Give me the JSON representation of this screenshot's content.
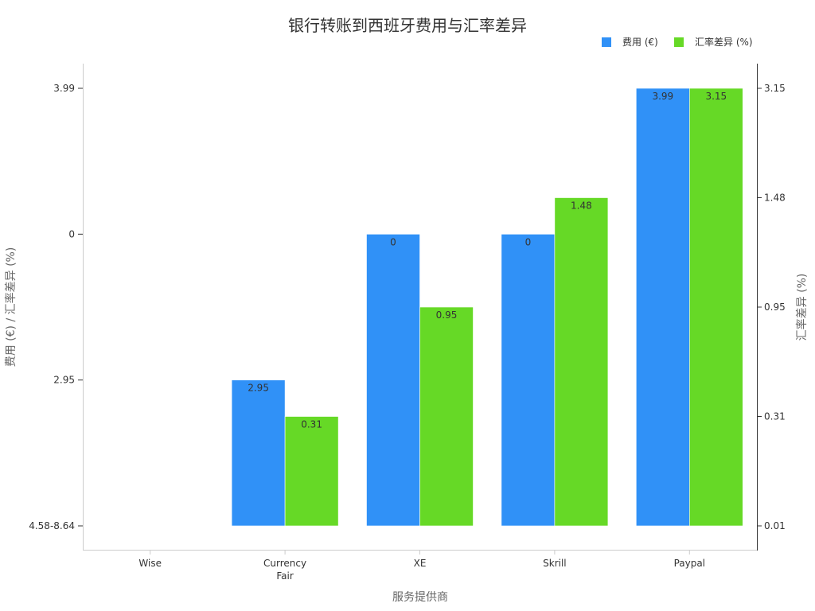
{
  "chart_data": {
    "type": "bar",
    "title": "银行转账到西班牙费用与汇率差异",
    "xlabel": "服务提供商",
    "ylabel_left": "费用 (€) / 汇率差异 (%)",
    "ylabel_right": "汇率差异 (%)",
    "categories": [
      "Wise",
      "Currency\nFair",
      "XE",
      "Skrill",
      "Paypal"
    ],
    "legend_position": "top-right",
    "grid": false,
    "left_axis": {
      "tick_labels": [
        "4.58-8.64",
        "2.95",
        "0",
        "3.99"
      ],
      "tick_levels": [
        0,
        1,
        2,
        3
      ]
    },
    "right_axis": {
      "tick_labels": [
        "0.01",
        "0.31",
        "0.95",
        "1.48",
        "3.15"
      ],
      "tick_levels": [
        0,
        0.75,
        1.5,
        2.25,
        3
      ]
    },
    "series": [
      {
        "name": "费用 (€)",
        "color": "#3091f7",
        "labels": [
          "",
          "2.95",
          "0",
          "0",
          "3.99"
        ],
        "levels": [
          null,
          1,
          2,
          2,
          3
        ]
      },
      {
        "name": "汇率差异 (%)",
        "color": "#66d926",
        "labels": [
          "",
          "0.31",
          "0.95",
          "1.48",
          "3.15"
        ],
        "levels": [
          null,
          0.75,
          1.5,
          2.25,
          3
        ]
      }
    ]
  }
}
